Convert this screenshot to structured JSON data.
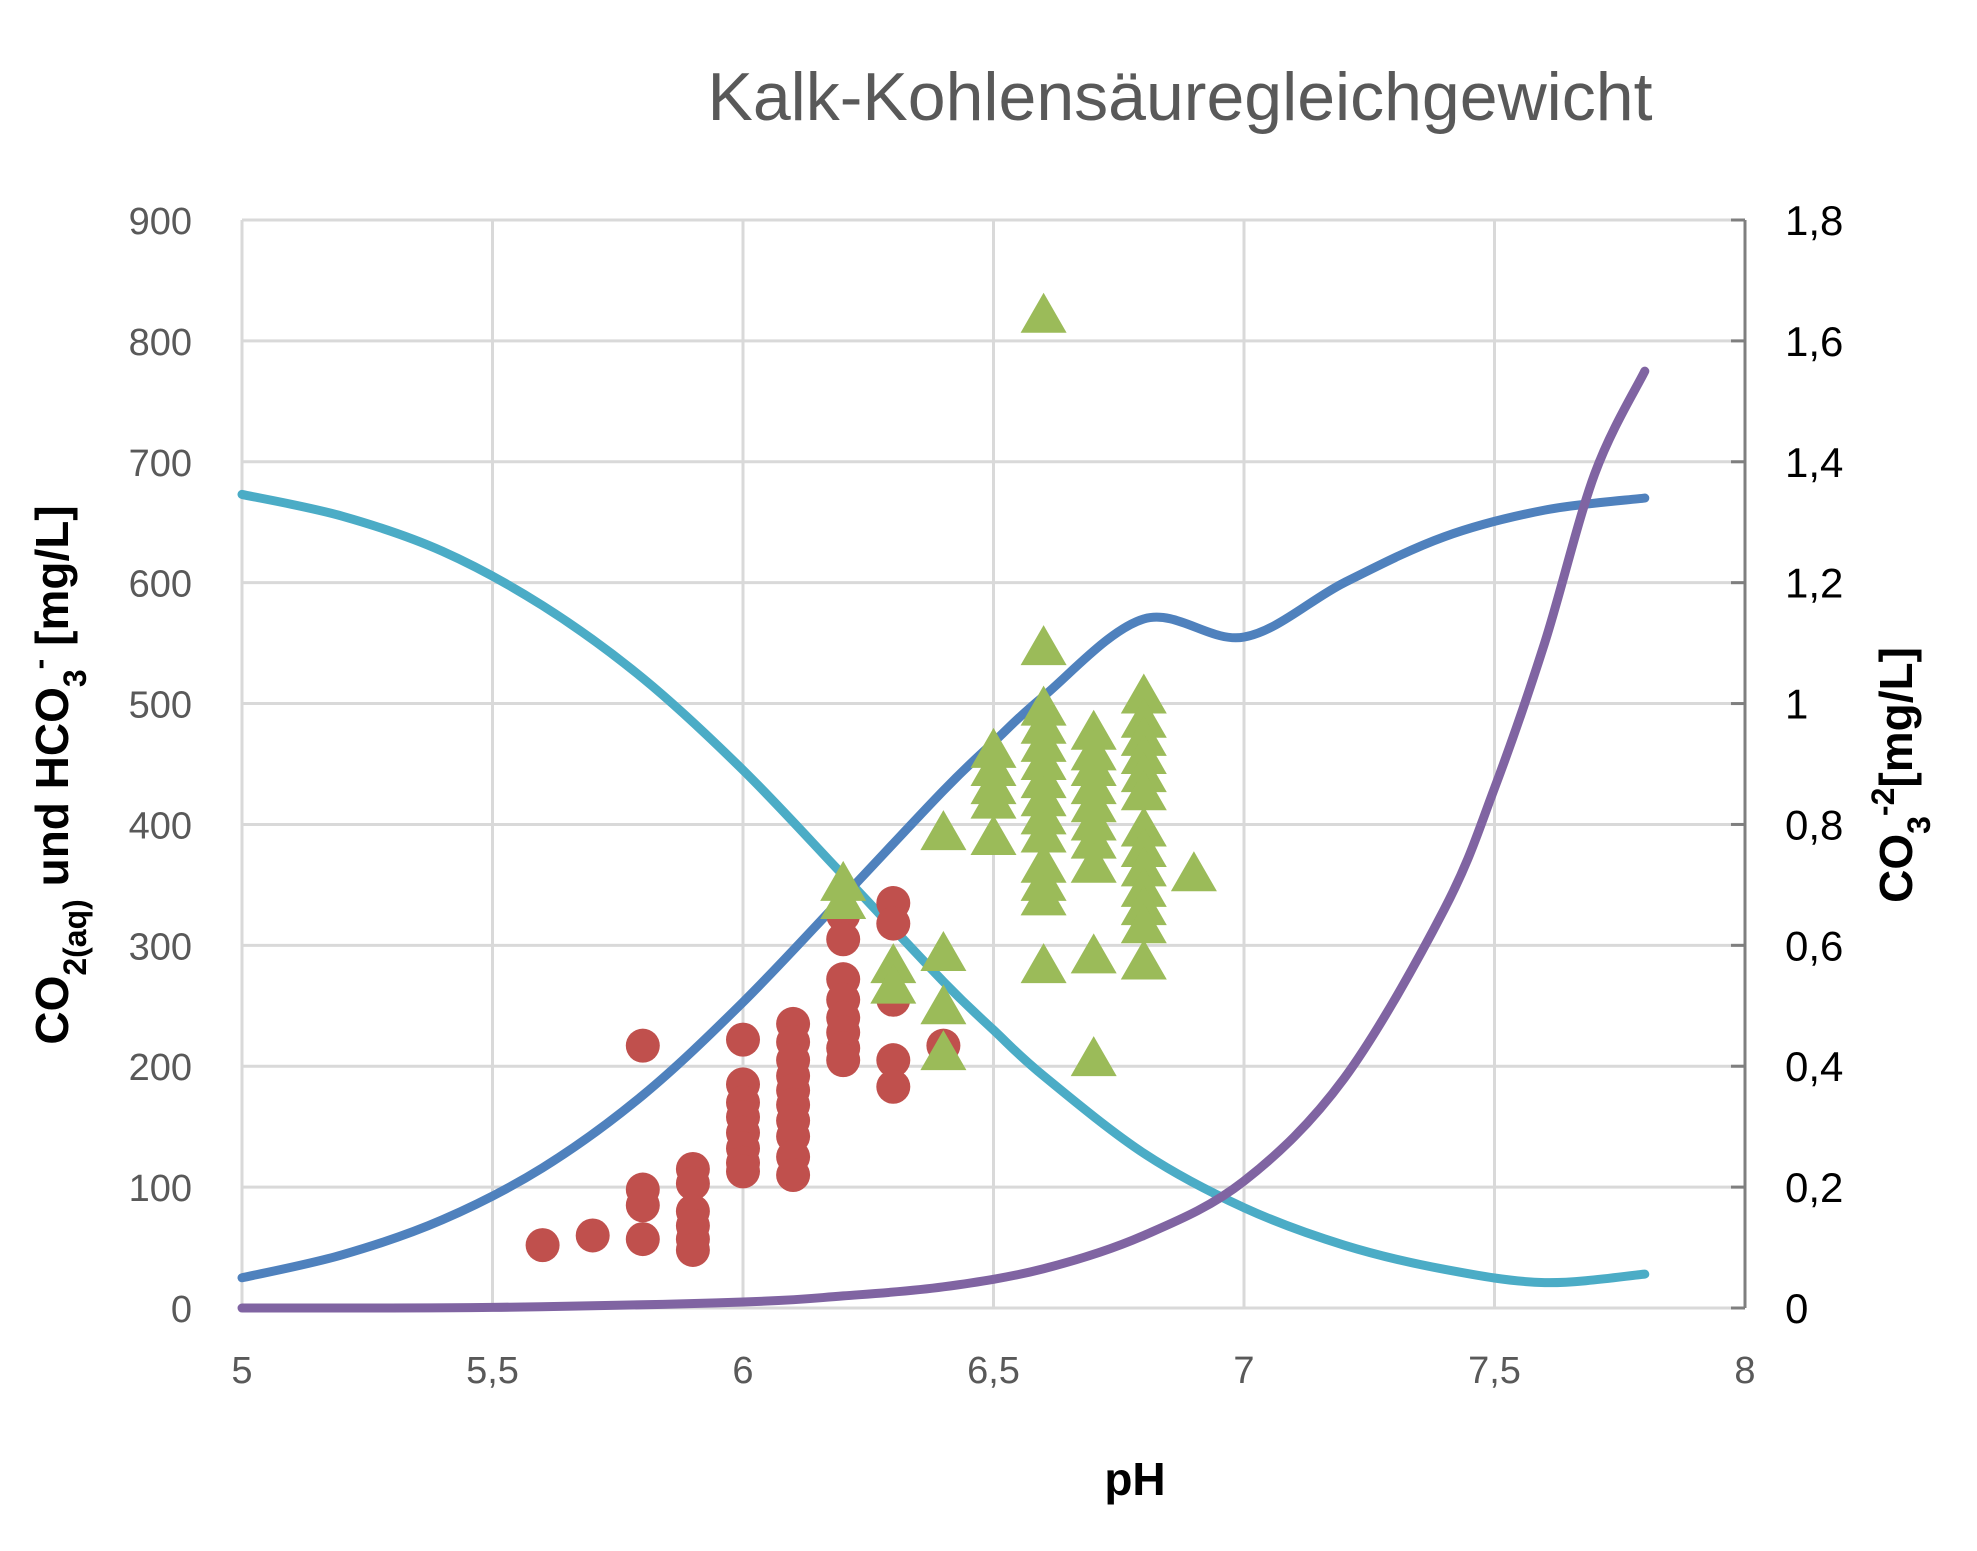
{
  "chart_data": {
    "type": "line",
    "title": "Kalk-Kohlensäuregleichgewicht",
    "xlabel": "pH",
    "ylabel_left": {
      "text": [
        {
          "t": "CO"
        },
        {
          "t": "2(aq)",
          "pos": "sub"
        },
        {
          "t": " und HCO"
        },
        {
          "t": "3",
          "pos": "sub"
        },
        {
          "t": "-",
          "pos": "sup"
        },
        {
          "t": " [mg/L]"
        }
      ]
    },
    "ylabel_right": {
      "text": [
        {
          "t": "CO"
        },
        {
          "t": "3",
          "pos": "sub"
        },
        {
          "t": "-2",
          "pos": "sup"
        },
        {
          "t": "[mg/L]"
        }
      ]
    },
    "xlim": [
      5,
      8
    ],
    "ylim_left": [
      0,
      900
    ],
    "ylim_right": [
      0,
      1.8
    ],
    "x_ticks": [
      "5",
      "5,5",
      "6",
      "6,5",
      "7",
      "7,5",
      "8"
    ],
    "y_ticks_left": [
      "0",
      "100",
      "200",
      "300",
      "400",
      "500",
      "600",
      "700",
      "800",
      "900"
    ],
    "y_ticks_right": [
      "0",
      "0,2",
      "0,4",
      "0,6",
      "0,8",
      "1",
      "1,2",
      "1,4",
      "1,6",
      "1,8"
    ],
    "grid": true,
    "series": [
      {
        "kind": "line",
        "axis": "left",
        "color": "#4bacc6",
        "x": [
          5.0,
          5.2,
          5.4,
          5.6,
          5.8,
          6.0,
          6.2,
          6.4,
          6.5,
          6.6,
          6.8,
          7.0,
          7.2,
          7.4,
          7.6,
          7.8
        ],
        "y": [
          673,
          655,
          626,
          581,
          521,
          445,
          358,
          270,
          230,
          192,
          128,
          83,
          52,
          32,
          21,
          28
        ]
      },
      {
        "kind": "line",
        "axis": "left",
        "color": "#4f81bd",
        "x": [
          5.0,
          5.2,
          5.4,
          5.6,
          5.8,
          6.0,
          6.2,
          6.4,
          6.5,
          6.6,
          6.8,
          7.0,
          7.2,
          7.4,
          7.6,
          7.8
        ],
        "y": [
          25,
          44,
          73,
          116,
          176,
          253,
          340,
          428,
          468,
          506,
          570,
          555,
          600,
          638,
          660,
          670
        ]
      },
      {
        "kind": "line",
        "axis": "right",
        "color": "#8064a2",
        "x": [
          5.0,
          5.5,
          6.0,
          6.2,
          6.4,
          6.6,
          6.8,
          7.0,
          7.2,
          7.4,
          7.5,
          7.6,
          7.7,
          7.8
        ],
        "y": [
          0,
          0.001,
          0.01,
          0.02,
          0.035,
          0.065,
          0.12,
          0.21,
          0.38,
          0.66,
          0.86,
          1.1,
          1.38,
          1.55
        ]
      },
      {
        "kind": "scatter",
        "axis": "left",
        "marker": "circle",
        "color": "#c0504d",
        "points": [
          [
            5.6,
            52
          ],
          [
            5.7,
            60
          ],
          [
            5.8,
            217
          ],
          [
            5.8,
            98
          ],
          [
            5.8,
            85
          ],
          [
            5.8,
            57
          ],
          [
            5.9,
            115
          ],
          [
            5.9,
            103
          ],
          [
            5.9,
            80
          ],
          [
            5.9,
            68
          ],
          [
            5.9,
            57
          ],
          [
            5.9,
            48
          ],
          [
            6.0,
            222
          ],
          [
            6.0,
            185
          ],
          [
            6.0,
            170
          ],
          [
            6.0,
            158
          ],
          [
            6.0,
            145
          ],
          [
            6.0,
            132
          ],
          [
            6.0,
            120
          ],
          [
            6.0,
            113
          ],
          [
            6.1,
            235
          ],
          [
            6.1,
            220
          ],
          [
            6.1,
            205
          ],
          [
            6.1,
            192
          ],
          [
            6.1,
            180
          ],
          [
            6.1,
            168
          ],
          [
            6.1,
            155
          ],
          [
            6.1,
            142
          ],
          [
            6.1,
            125
          ],
          [
            6.1,
            110
          ],
          [
            6.2,
            325
          ],
          [
            6.2,
            305
          ],
          [
            6.2,
            272
          ],
          [
            6.2,
            255
          ],
          [
            6.2,
            240
          ],
          [
            6.2,
            228
          ],
          [
            6.2,
            215
          ],
          [
            6.2,
            205
          ],
          [
            6.3,
            335
          ],
          [
            6.3,
            318
          ],
          [
            6.3,
            255
          ],
          [
            6.3,
            205
          ],
          [
            6.3,
            183
          ],
          [
            6.4,
            217
          ]
        ]
      },
      {
        "kind": "scatter",
        "axis": "left",
        "marker": "triangle",
        "color": "#9bbb59",
        "points": [
          [
            6.2,
            350
          ],
          [
            6.2,
            335
          ],
          [
            6.3,
            282
          ],
          [
            6.3,
            265
          ],
          [
            6.4,
            392
          ],
          [
            6.4,
            292
          ],
          [
            6.4,
            248
          ],
          [
            6.4,
            210
          ],
          [
            6.5,
            460
          ],
          [
            6.5,
            445
          ],
          [
            6.5,
            430
          ],
          [
            6.5,
            418
          ],
          [
            6.5,
            388
          ],
          [
            6.6,
            820
          ],
          [
            6.6,
            545
          ],
          [
            6.6,
            495
          ],
          [
            6.6,
            480
          ],
          [
            6.6,
            465
          ],
          [
            6.6,
            450
          ],
          [
            6.6,
            435
          ],
          [
            6.6,
            420
          ],
          [
            6.6,
            405
          ],
          [
            6.6,
            390
          ],
          [
            6.6,
            365
          ],
          [
            6.6,
            350
          ],
          [
            6.6,
            338
          ],
          [
            6.6,
            282
          ],
          [
            6.7,
            475
          ],
          [
            6.7,
            458
          ],
          [
            6.7,
            445
          ],
          [
            6.7,
            430
          ],
          [
            6.7,
            415
          ],
          [
            6.7,
            400
          ],
          [
            6.7,
            385
          ],
          [
            6.7,
            365
          ],
          [
            6.7,
            290
          ],
          [
            6.7,
            205
          ],
          [
            6.8,
            505
          ],
          [
            6.8,
            485
          ],
          [
            6.8,
            470
          ],
          [
            6.8,
            455
          ],
          [
            6.8,
            440
          ],
          [
            6.8,
            425
          ],
          [
            6.8,
            395
          ],
          [
            6.8,
            378
          ],
          [
            6.8,
            362
          ],
          [
            6.8,
            345
          ],
          [
            6.8,
            330
          ],
          [
            6.8,
            315
          ],
          [
            6.8,
            285
          ],
          [
            6.9,
            358
          ]
        ]
      }
    ]
  }
}
